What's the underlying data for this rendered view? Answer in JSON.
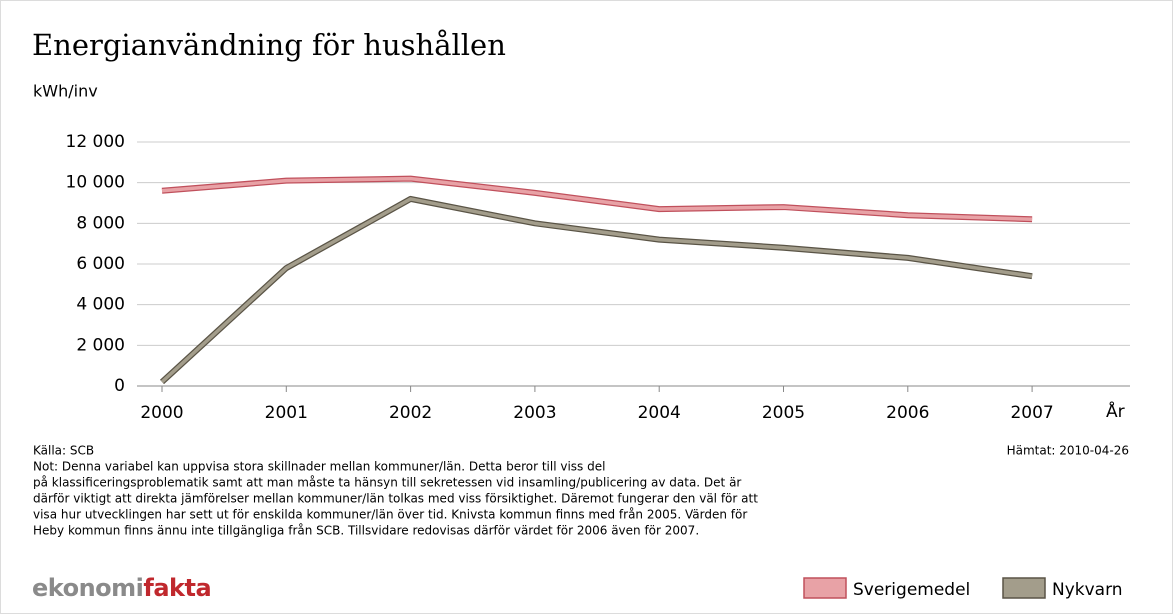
{
  "chart_data": {
    "type": "line",
    "title": "Energianvändning för hushållen",
    "y_axis_label": "kWh/inv",
    "x_axis_label": "År",
    "categories": [
      "2000",
      "2001",
      "2002",
      "2003",
      "2004",
      "2005",
      "2006",
      "2007"
    ],
    "series": [
      {
        "name": "Sverigemedel",
        "color": "#e8a2a6",
        "outline": "#c0505c",
        "values": [
          9600,
          10100,
          10200,
          9500,
          8700,
          8800,
          8400,
          8200
        ]
      },
      {
        "name": "Nykvarn",
        "color": "#a39d8b",
        "outline": "#5a5446",
        "values": [
          200,
          5800,
          9200,
          8000,
          7200,
          6800,
          6300,
          5400
        ]
      }
    ],
    "ylim": [
      0,
      12000
    ],
    "yticks": [
      0,
      {
        "value": 2000,
        "label": "2 000"
      },
      {
        "value": 4000,
        "label": "4 000"
      },
      {
        "value": 6000,
        "label": "6 000"
      },
      {
        "value": 8000,
        "label": "8 000"
      },
      {
        "value": 10000,
        "label": "10 000"
      },
      {
        "value": 12000,
        "label": "12 000"
      }
    ],
    "grid": true,
    "legend": "bottom-right",
    "source": "Källa: SCB",
    "retrieved": "Hämtat: 2010-04-26",
    "note": [
      "Not: Denna variabel kan uppvisa stora skillnader mellan kommuner/län. Detta beror till viss del",
      "på  klassificeringsproblematik samt att man måste ta hänsyn till sekretessen vid insamling/publicering av data. Det är",
      "därför viktigt att direkta jämförelser mellan kommuner/län tolkas med viss försiktighet. Däremot fungerar den väl för att",
      "visa hur utvecklingen har sett ut för enskilda kommuner/län över tid. Knivsta kommun finns med från 2005. Värden för",
      "Heby kommun finns ännu inte tillgängliga från SCB. Tillsvidare redovisas därför värdet för 2006 även för 2007."
    ],
    "logo": [
      "ekonomi",
      "fakta"
    ]
  }
}
